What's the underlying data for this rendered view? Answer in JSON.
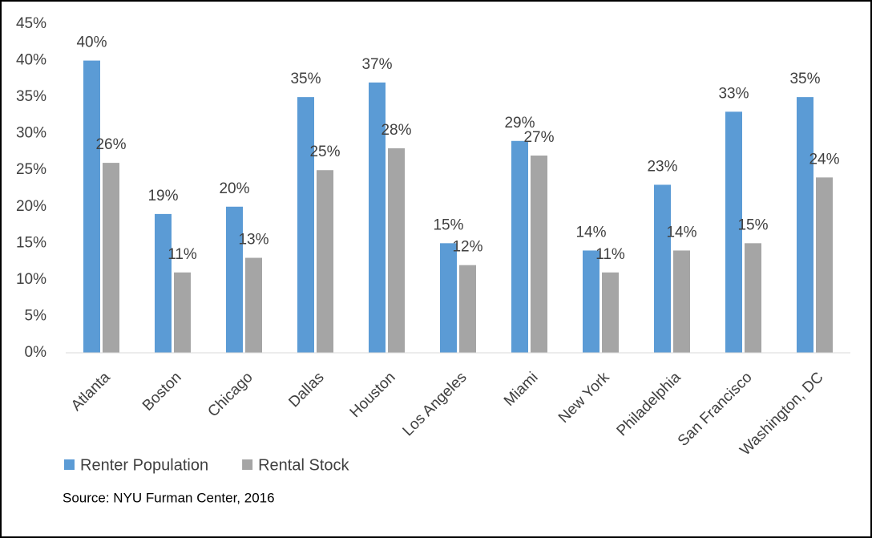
{
  "chart_data": {
    "type": "bar",
    "categories": [
      "Atlanta",
      "Boston",
      "Chicago",
      "Dallas",
      "Houston",
      "Los Angeles",
      "Miami",
      "New York",
      "Philadelphia",
      "San Francisco",
      "Washington, DC"
    ],
    "series": [
      {
        "name": "Renter Population",
        "color": "#5b9bd5",
        "values": [
          40,
          19,
          20,
          35,
          37,
          15,
          29,
          14,
          23,
          33,
          35
        ],
        "value_labels": [
          "40%",
          "19%",
          "20%",
          "35%",
          "37%",
          "15%",
          "29%",
          "14%",
          "23%",
          "33%",
          "35%"
        ]
      },
      {
        "name": "Rental Stock",
        "color": "#a5a5a5",
        "values": [
          26,
          11,
          13,
          25,
          28,
          12,
          27,
          11,
          14,
          15,
          24
        ],
        "value_labels": [
          "26%",
          "11%",
          "13%",
          "25%",
          "28%",
          "12%",
          "27%",
          "11%",
          "14%",
          "15%",
          "24%"
        ]
      }
    ],
    "ylim": [
      0,
      45
    ],
    "yticks": [
      {
        "value": 0,
        "label": "0%"
      },
      {
        "value": 5,
        "label": "5%"
      },
      {
        "value": 10,
        "label": "10%"
      },
      {
        "value": 15,
        "label": "15%"
      },
      {
        "value": 20,
        "label": "20%"
      },
      {
        "value": 25,
        "label": "25%"
      },
      {
        "value": 30,
        "label": "30%"
      },
      {
        "value": 35,
        "label": "35%"
      },
      {
        "value": 40,
        "label": "40%"
      },
      {
        "value": 45,
        "label": "45%"
      }
    ],
    "grid": false,
    "source": "Source: NYU Furman Center, 2016"
  }
}
